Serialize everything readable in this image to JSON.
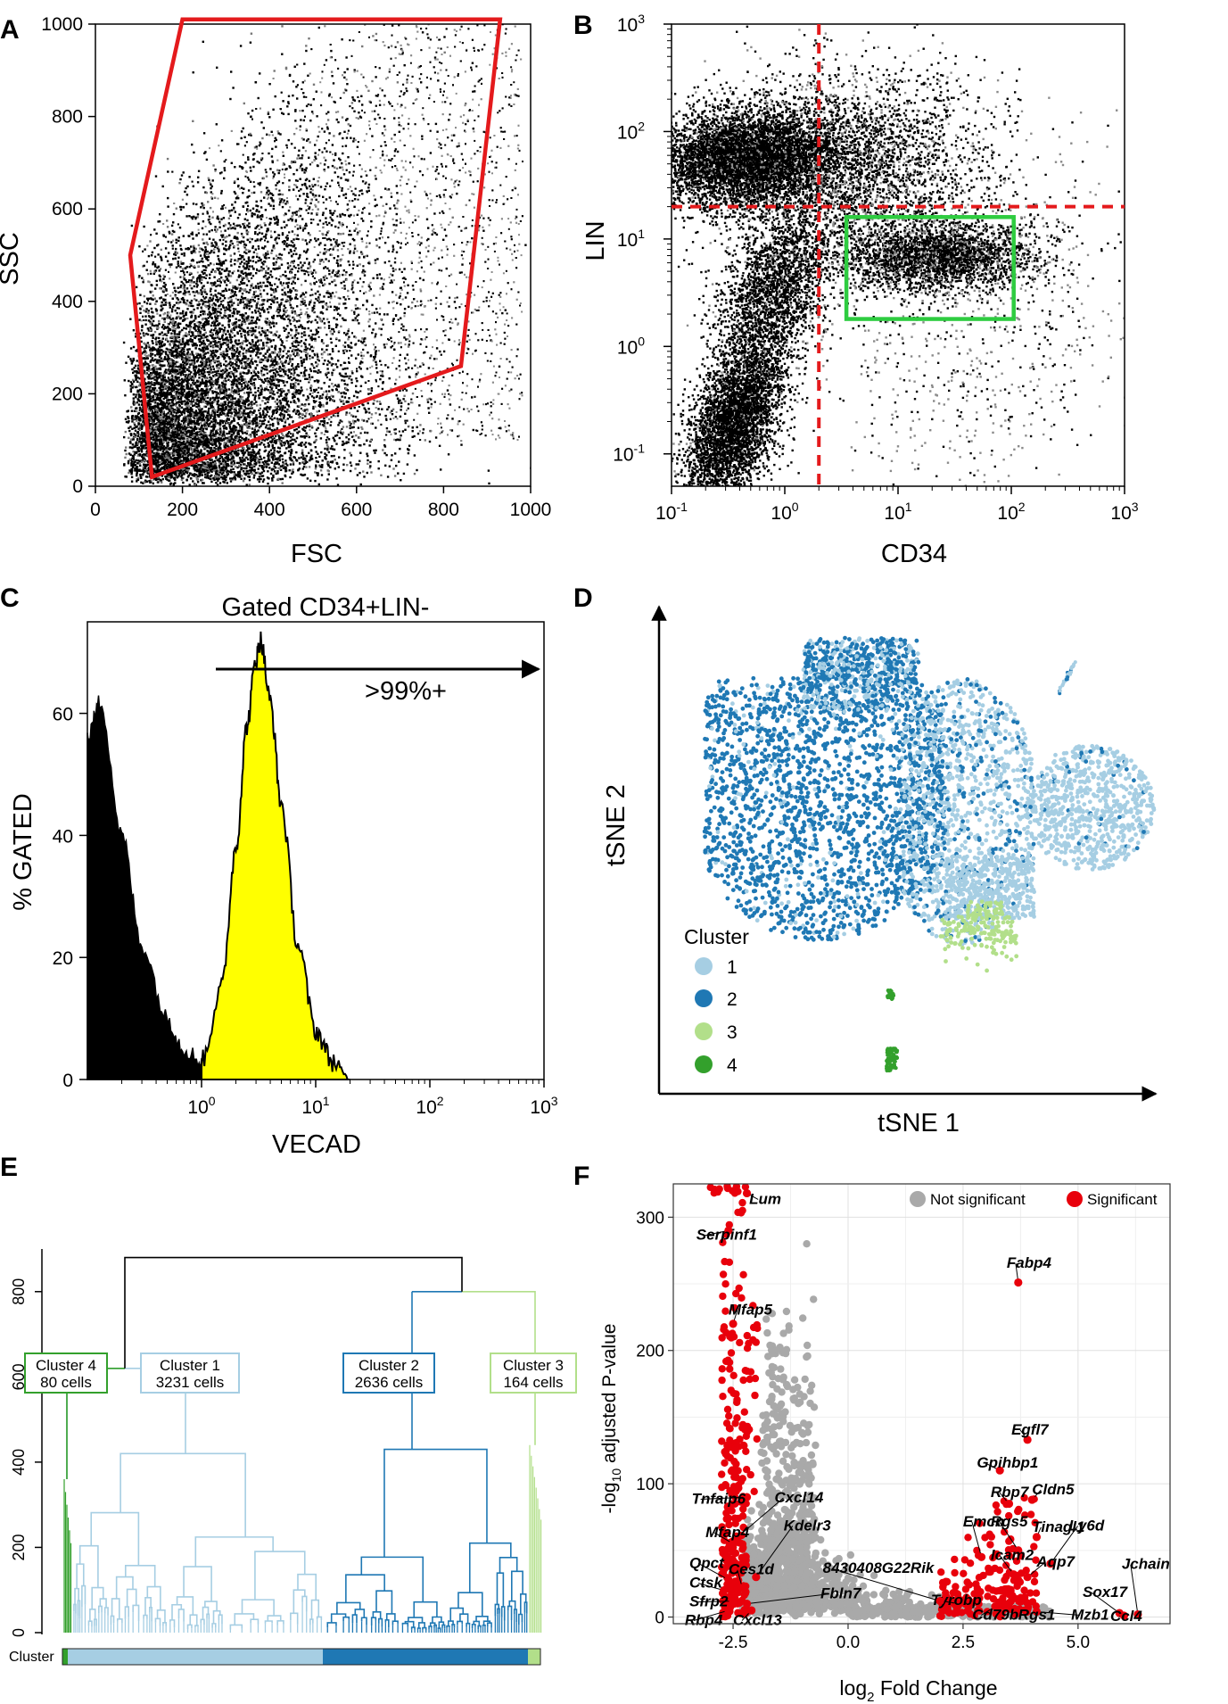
{
  "colors": {
    "gate_red": "#e41a1c",
    "gate_green": "#2ecc40",
    "histogram_yellow": "#ffff00",
    "cluster_1": "#a6cee3",
    "cluster_2": "#1f78b4",
    "cluster_3": "#b2df8a",
    "cluster_4": "#33a02c",
    "not_significant": "#a9a9a9",
    "significant": "#e8000b"
  },
  "panels": {
    "A": {
      "letter": "A",
      "xlabel": "FSC",
      "ylabel": "SSC",
      "xticks": [
        "0",
        "200",
        "400",
        "600",
        "800",
        "1000"
      ],
      "yticks": [
        "0",
        "200",
        "400",
        "600",
        "800",
        "1000"
      ]
    },
    "B": {
      "letter": "B",
      "xlabel": "CD34",
      "ylabel": "LIN"
    },
    "C": {
      "letter": "C",
      "title": "Gated CD34+LIN-",
      "annotation": ">99%+",
      "xlabel": "VECAD",
      "ylabel": "% GATED",
      "yticks": [
        "0",
        "20",
        "40",
        "60"
      ]
    },
    "D": {
      "letter": "D",
      "xlabel": "tSNE 1",
      "ylabel": "tSNE 2",
      "legend_title": "Cluster",
      "legend_items": [
        "1",
        "2",
        "3",
        "4"
      ]
    },
    "E": {
      "letter": "E",
      "yticks": [
        "0",
        "200",
        "400",
        "600",
        "800"
      ],
      "bar_label": "Cluster",
      "boxes": [
        {
          "line1": "Cluster 4",
          "line2": "80 cells"
        },
        {
          "line1": "Cluster 1",
          "line2": "3231 cells"
        },
        {
          "line1": "Cluster 2",
          "line2": "2636 cells"
        },
        {
          "line1": "Cluster 3",
          "line2": "164 cells"
        }
      ]
    },
    "F": {
      "letter": "F",
      "xlabel": "log",
      "xlabel_sub": "2",
      "xlabel_rest": " Fold Change",
      "ylabel_pre": "-log",
      "ylabel_sub": "10",
      "ylabel_rest": " adjusted P-value",
      "legend_ns": "Not significant",
      "legend_sig": "Significant",
      "xticks": [
        "-2.5",
        "0.0",
        "2.5",
        "5.0"
      ],
      "yticks": [
        "0",
        "100",
        "200",
        "300"
      ]
    }
  },
  "chart_data": [
    {
      "panel": "A",
      "type": "scatter",
      "title": "",
      "xlabel": "FSC",
      "ylabel": "SSC",
      "xlim": [
        0,
        1000
      ],
      "ylim": [
        0,
        1000
      ],
      "gate": {
        "shape": "polygon",
        "vertices": [
          [
            130,
            20
          ],
          [
            80,
            500
          ],
          [
            200,
            1010
          ],
          [
            930,
            1010
          ],
          [
            840,
            260
          ]
        ]
      }
    },
    {
      "panel": "B",
      "type": "scatter",
      "title": "",
      "xlabel": "CD34",
      "ylabel": "LIN",
      "xscale": "log",
      "yscale": "log",
      "xlim": [
        0.1,
        1000
      ],
      "ylim": [
        0.05,
        1000
      ],
      "x_tick_labels": [
        "10-1",
        "100",
        "101",
        "102",
        "103"
      ],
      "y_tick_labels": [
        "10-1",
        "100",
        "101",
        "102",
        "103"
      ],
      "threshold_lines": {
        "x": 2,
        "y": 20
      },
      "gate": {
        "shape": "rectangle",
        "x": [
          3.5,
          105
        ],
        "y": [
          1.8,
          16
        ]
      }
    },
    {
      "panel": "C",
      "type": "area",
      "title": "Gated CD34+LIN-",
      "xlabel": "VECAD",
      "ylabel": "% GATED",
      "xscale": "log",
      "xlim": [
        0.1,
        1000
      ],
      "ylim": [
        0,
        75
      ],
      "x_tick_labels": [
        "100",
        "101",
        "102",
        "103"
      ],
      "annotation": ">99%+",
      "series": [
        {
          "name": "",
          "x": [
            0.1,
            0.13,
            0.2,
            0.3,
            0.5,
            0.7,
            1.0,
            1.3
          ],
          "values": [
            56,
            62,
            40,
            22,
            10,
            5,
            3,
            2
          ]
        },
        {
          "name": "",
          "x": [
            1.0,
            1.5,
            2.0,
            2.5,
            3.0,
            3.3,
            4.0,
            5.0,
            7.0,
            10,
            14,
            20
          ],
          "values": [
            3,
            15,
            38,
            58,
            69,
            72,
            62,
            45,
            22,
            8,
            3,
            0
          ]
        }
      ]
    },
    {
      "panel": "D",
      "type": "scatter",
      "title": "",
      "xlabel": "tSNE 1",
      "ylabel": "tSNE 2",
      "legend_title": "Cluster",
      "legend_placement": "bottom-left",
      "series": [
        {
          "name": "1"
        },
        {
          "name": "2"
        },
        {
          "name": "3"
        },
        {
          "name": "4"
        }
      ]
    },
    {
      "panel": "E",
      "type": "dendrogram",
      "title": "",
      "ylim": [
        0,
        900
      ],
      "clusters": [
        {
          "name": "Cluster 4",
          "cells": 80
        },
        {
          "name": "Cluster 1",
          "cells": 3231
        },
        {
          "name": "Cluster 2",
          "cells": 2636
        },
        {
          "name": "Cluster 3",
          "cells": 164
        }
      ]
    },
    {
      "panel": "F",
      "type": "scatter",
      "title": "",
      "xlabel": "log2 Fold Change",
      "ylabel": "-log10 adjusted P-value",
      "xlim": [
        -3.8,
        7.0
      ],
      "ylim": [
        -5,
        325
      ],
      "legend": [
        "Not significant",
        "Significant"
      ],
      "legend_placement": "top-right",
      "labeled_points": [
        {
          "label": "Lum",
          "x": -2.2,
          "y": 318
        },
        {
          "label": "Serpinf1",
          "x": -2.6,
          "y": 290
        },
        {
          "label": "Fabp4",
          "x": 3.7,
          "y": 251
        },
        {
          "label": "Mfap5",
          "x": -2.5,
          "y": 220
        },
        {
          "label": "Egfl7",
          "x": 3.9,
          "y": 133
        },
        {
          "label": "Gpihbp1",
          "x": 3.3,
          "y": 110
        },
        {
          "label": "Rbp7",
          "x": 3.5,
          "y": 85
        },
        {
          "label": "Cldn5",
          "x": 4.0,
          "y": 88
        },
        {
          "label": "Tinagl1",
          "x": 4.1,
          "y": 60
        },
        {
          "label": "Ly6d",
          "x": 4.4,
          "y": 40
        },
        {
          "label": "Rgs5",
          "x": 3.7,
          "y": 50
        },
        {
          "label": "Emcn",
          "x": 2.9,
          "y": 45
        },
        {
          "label": "Aqp7",
          "x": 3.9,
          "y": 30
        },
        {
          "label": "Icam2",
          "x": 3.6,
          "y": 32
        },
        {
          "label": "Jchain",
          "x": 6.3,
          "y": 2
        },
        {
          "label": "Sox17",
          "x": 5.9,
          "y": 3
        },
        {
          "label": "Mzb1",
          "x": 4.1,
          "y": 4
        },
        {
          "label": "Ccl4",
          "x": 6.0,
          "y": 1
        },
        {
          "label": "Rgs1",
          "x": 3.9,
          "y": 6
        },
        {
          "label": "Cd79b",
          "x": 3.2,
          "y": 8
        },
        {
          "label": "Tyrobp",
          "x": 2.4,
          "y": 10
        },
        {
          "label": "8430408G22Rik",
          "x": 2.0,
          "y": 12
        },
        {
          "label": "Tnfaip6",
          "x": -2.2,
          "y": 90
        },
        {
          "label": "Cxcl14",
          "x": -2.4,
          "y": 60
        },
        {
          "label": "Mfap4",
          "x": -2.5,
          "y": 55
        },
        {
          "label": "Kdelr3",
          "x": -2.0,
          "y": 30
        },
        {
          "label": "Qpct",
          "x": -2.6,
          "y": 28
        },
        {
          "label": "Ces1d",
          "x": -2.3,
          "y": 22
        },
        {
          "label": "Ctsk",
          "x": -2.7,
          "y": 20
        },
        {
          "label": "Fbln7",
          "x": -2.2,
          "y": 10
        },
        {
          "label": "Sfrp2",
          "x": -2.5,
          "y": 12
        },
        {
          "label": "Rbp4",
          "x": -2.6,
          "y": 5
        },
        {
          "label": "Cxcl13",
          "x": -2.1,
          "y": 5
        }
      ]
    }
  ]
}
